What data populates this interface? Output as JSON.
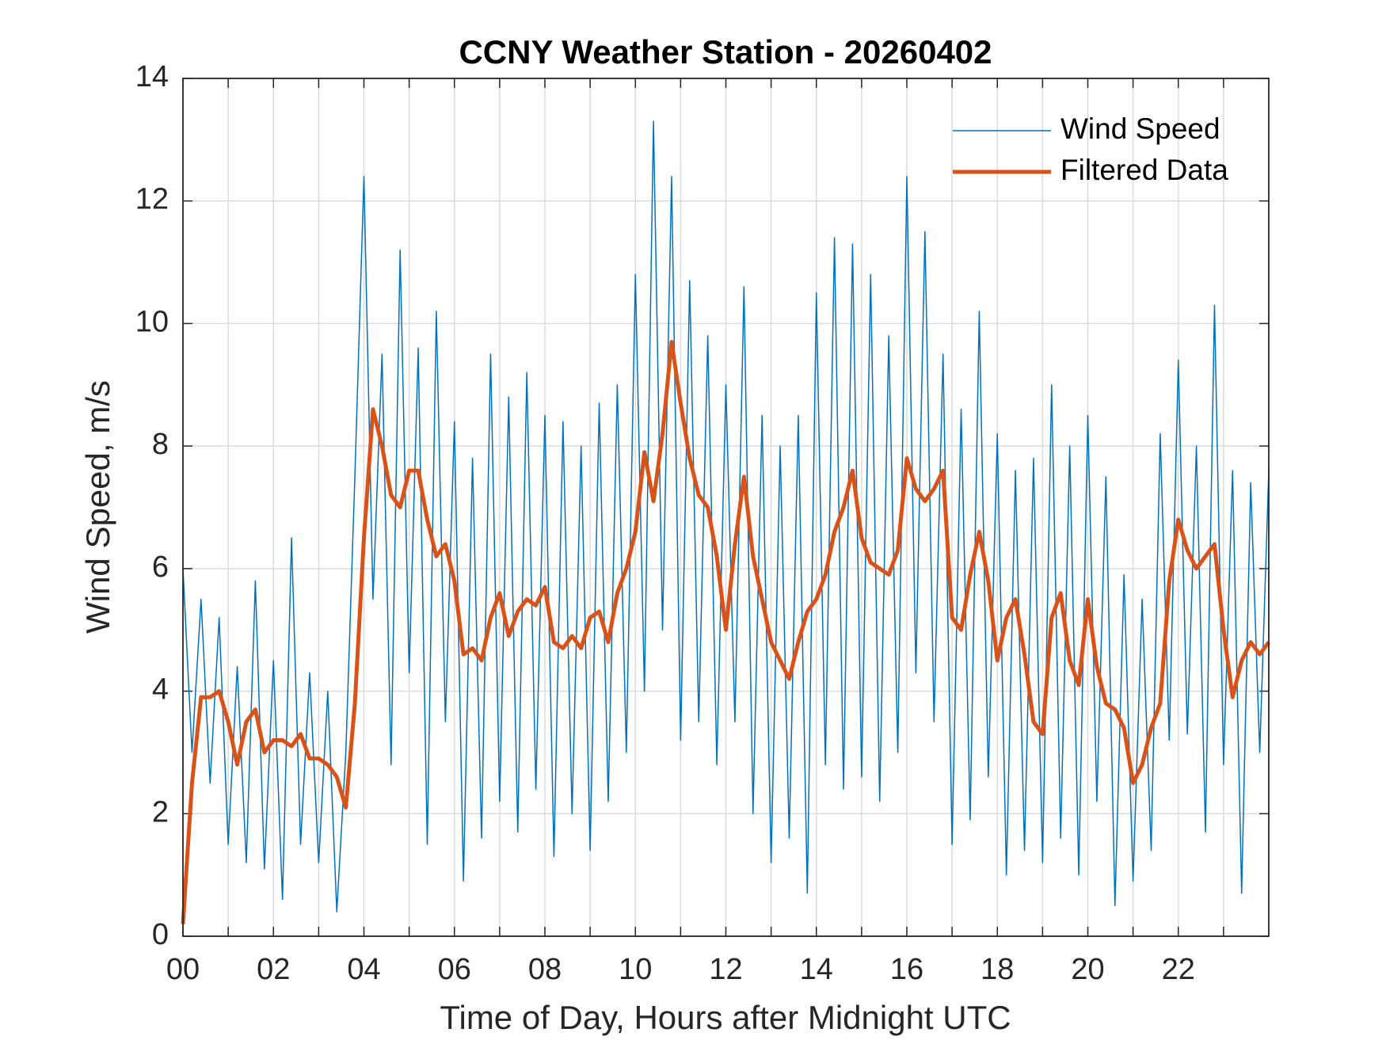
{
  "chart_data": {
    "type": "line",
    "title": "CCNY Weather Station - 20260402",
    "xlabel": "Time of Day, Hours after Midnight UTC",
    "ylabel": "Wind Speed, m/s",
    "xlim": [
      0,
      24
    ],
    "ylim": [
      0,
      14
    ],
    "xticks": [
      {
        "value": 0,
        "label": "00"
      },
      {
        "value": 2,
        "label": "02"
      },
      {
        "value": 4,
        "label": "04"
      },
      {
        "value": 6,
        "label": "06"
      },
      {
        "value": 8,
        "label": "08"
      },
      {
        "value": 10,
        "label": "10"
      },
      {
        "value": 12,
        "label": "12"
      },
      {
        "value": 14,
        "label": "14"
      },
      {
        "value": 16,
        "label": "16"
      },
      {
        "value": 18,
        "label": "18"
      },
      {
        "value": 20,
        "label": "20"
      },
      {
        "value": 22,
        "label": "22"
      }
    ],
    "x_minor_ticks": [
      1,
      3,
      5,
      7,
      9,
      11,
      13,
      15,
      17,
      19,
      21,
      23
    ],
    "yticks": [
      0,
      2,
      4,
      6,
      8,
      10,
      12,
      14
    ],
    "grid": true,
    "legend": "upper-right",
    "x": [
      0,
      0.2,
      0.4,
      0.6,
      0.8,
      1,
      1.2,
      1.4,
      1.6,
      1.8,
      2,
      2.2,
      2.4,
      2.6,
      2.8,
      3,
      3.2,
      3.4,
      3.6,
      3.8,
      4,
      4.2,
      4.4,
      4.6,
      4.8,
      5,
      5.2,
      5.4,
      5.6,
      5.8,
      6,
      6.2,
      6.4,
      6.6,
      6.8,
      7,
      7.2,
      7.4,
      7.6,
      7.8,
      8,
      8.2,
      8.4,
      8.6,
      8.8,
      9,
      9.2,
      9.4,
      9.6,
      9.8,
      10,
      10.2,
      10.4,
      10.6,
      10.8,
      11,
      11.2,
      11.4,
      11.6,
      11.8,
      12,
      12.2,
      12.4,
      12.6,
      12.8,
      13,
      13.2,
      13.4,
      13.6,
      13.8,
      14,
      14.2,
      14.4,
      14.6,
      14.8,
      15,
      15.2,
      15.4,
      15.6,
      15.8,
      16,
      16.2,
      16.4,
      16.6,
      16.8,
      17,
      17.2,
      17.4,
      17.6,
      17.8,
      18,
      18.2,
      18.4,
      18.6,
      18.8,
      19,
      19.2,
      19.4,
      19.6,
      19.8,
      20,
      20.2,
      20.4,
      20.6,
      20.8,
      21,
      21.2,
      21.4,
      21.6,
      21.8,
      22,
      22.2,
      22.4,
      22.6,
      22.8,
      23,
      23.2,
      23.4,
      23.6,
      23.8,
      24
    ],
    "series": [
      {
        "name": "Wind Speed",
        "color": "#0072BD",
        "width": 1.5,
        "values": [
          6.0,
          3.0,
          5.5,
          2.5,
          5.2,
          1.5,
          4.4,
          1.2,
          5.8,
          1.1,
          4.5,
          0.6,
          6.5,
          1.5,
          4.3,
          1.2,
          4.0,
          0.4,
          3.0,
          7.5,
          12.4,
          5.5,
          9.5,
          2.8,
          11.2,
          4.3,
          9.6,
          1.5,
          10.2,
          3.5,
          8.4,
          0.9,
          7.8,
          1.6,
          9.5,
          2.2,
          8.8,
          1.7,
          9.2,
          2.4,
          8.5,
          1.3,
          8.4,
          2.0,
          8.0,
          1.4,
          8.7,
          2.2,
          9.0,
          3.0,
          10.8,
          4.0,
          13.3,
          5.0,
          12.4,
          3.2,
          10.7,
          3.5,
          9.8,
          2.8,
          9.0,
          3.5,
          10.6,
          2.0,
          8.5,
          1.2,
          8.0,
          1.6,
          8.5,
          0.7,
          10.5,
          2.8,
          11.4,
          2.4,
          11.3,
          2.6,
          10.8,
          2.2,
          9.8,
          3.0,
          12.4,
          4.3,
          11.5,
          3.5,
          9.5,
          1.5,
          8.6,
          1.9,
          10.2,
          2.6,
          8.2,
          1.0,
          7.6,
          1.4,
          7.8,
          1.2,
          9.0,
          1.6,
          8.0,
          1.0,
          8.5,
          2.2,
          7.5,
          0.5,
          5.9,
          0.9,
          5.5,
          1.4,
          8.2,
          3.2,
          9.4,
          3.3,
          8.0,
          1.7,
          10.3,
          2.8,
          7.6,
          0.7,
          7.4,
          3.0,
          7.6
        ]
      },
      {
        "name": "Filtered Data",
        "color": "#D95319",
        "width": 5,
        "values": [
          0.2,
          2.5,
          3.9,
          3.9,
          4.0,
          3.5,
          2.8,
          3.5,
          3.7,
          3.0,
          3.2,
          3.2,
          3.1,
          3.3,
          2.9,
          2.9,
          2.8,
          2.6,
          2.1,
          3.8,
          6.5,
          8.6,
          8.0,
          7.2,
          7.0,
          7.6,
          7.6,
          6.8,
          6.2,
          6.4,
          5.8,
          4.6,
          4.7,
          4.5,
          5.2,
          5.6,
          4.9,
          5.3,
          5.5,
          5.4,
          5.7,
          4.8,
          4.7,
          4.9,
          4.7,
          5.2,
          5.3,
          4.8,
          5.6,
          6.0,
          6.6,
          7.9,
          7.1,
          8.2,
          9.7,
          8.7,
          7.8,
          7.2,
          7.0,
          6.2,
          5.0,
          6.4,
          7.5,
          6.2,
          5.5,
          4.8,
          4.5,
          4.2,
          4.8,
          5.3,
          5.5,
          5.9,
          6.6,
          7.0,
          7.6,
          6.5,
          6.1,
          6.0,
          5.9,
          6.3,
          7.8,
          7.3,
          7.1,
          7.3,
          7.6,
          5.2,
          5.0,
          5.9,
          6.6,
          5.8,
          4.5,
          5.2,
          5.5,
          4.6,
          3.5,
          3.3,
          5.2,
          5.6,
          4.5,
          4.1,
          5.5,
          4.4,
          3.8,
          3.7,
          3.4,
          2.5,
          2.8,
          3.4,
          3.8,
          5.8,
          6.8,
          6.3,
          6.0,
          6.2,
          6.4,
          5.0,
          3.9,
          4.5,
          4.8,
          4.6,
          4.8
        ]
      }
    ]
  }
}
